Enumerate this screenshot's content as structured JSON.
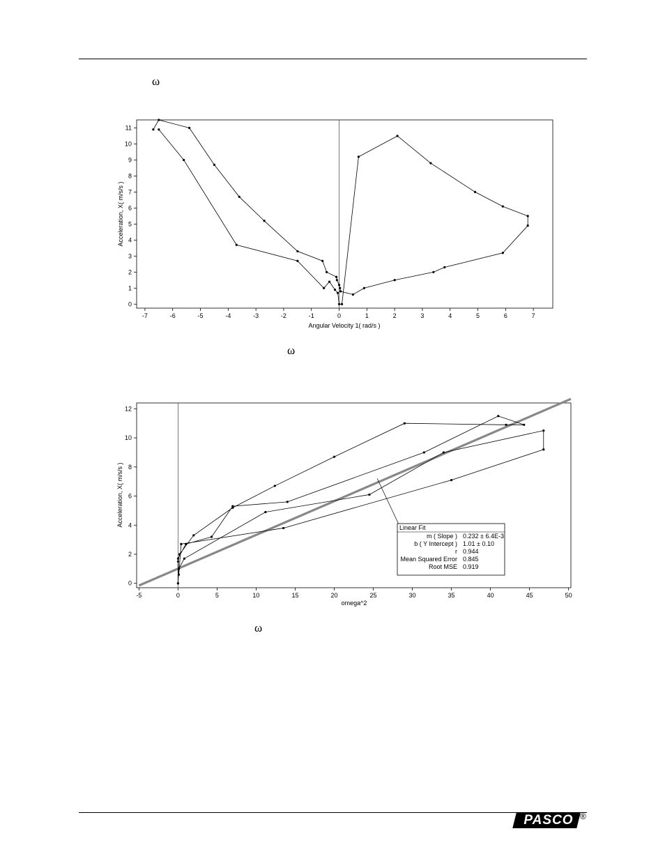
{
  "page": {
    "omega_symbol": "ω",
    "brand": "PASCO",
    "registered_mark": "®"
  },
  "chart_data": [
    {
      "type": "line",
      "title": "",
      "xlabel": "Angular Velocity 1( rad/s )",
      "ylabel": "Acceleration, X( m/s/s )",
      "xlim": [
        -7.3,
        7.7
      ],
      "ylim": [
        -0.25,
        11.5
      ],
      "xticks": [
        -7,
        -6,
        -5,
        -4,
        -3,
        -2,
        -1,
        0,
        1,
        2,
        3,
        4,
        5,
        6,
        7
      ],
      "yticks": [
        0,
        1,
        2,
        3,
        4,
        5,
        6,
        7,
        8,
        9,
        10,
        11
      ],
      "grid": false,
      "legend": "none",
      "zero_line_x": 0,
      "series": [
        {
          "x": [
            -6.7,
            -6.5,
            -5.4,
            -4.5,
            -3.6,
            -2.7,
            -1.5,
            -0.6,
            -0.45,
            -0.1,
            -0.08,
            0.0,
            0.03,
            0.05,
            0.5,
            0.9,
            2.0,
            3.4,
            3.8,
            5.9,
            6.8,
            6.8,
            5.9,
            4.9,
            3.3,
            2.1,
            0.7,
            0.1,
            0.0,
            -0.05,
            -0.15,
            -0.35,
            -0.55,
            -1.5,
            -3.7,
            -5.6,
            -6.5
          ],
          "y": [
            10.9,
            11.5,
            11.0,
            8.7,
            6.7,
            5.2,
            3.3,
            2.7,
            2.0,
            1.7,
            1.5,
            1.2,
            1.0,
            0.8,
            0.6,
            1.0,
            1.5,
            2.0,
            2.3,
            3.2,
            4.9,
            5.5,
            6.1,
            7.0,
            8.8,
            10.5,
            9.2,
            0.0,
            0.0,
            0.7,
            0.9,
            1.4,
            1.0,
            2.7,
            3.7,
            9.0,
            10.9
          ]
        }
      ]
    },
    {
      "type": "scatter",
      "title": "",
      "xlabel": "omega^2",
      "ylabel": "Acceleration, X( m/s/s )",
      "xlim": [
        -5.3,
        50.3
      ],
      "ylim": [
        -0.3,
        12.4
      ],
      "xticks": [
        -5,
        0,
        5,
        10,
        15,
        20,
        25,
        30,
        35,
        40,
        45,
        50
      ],
      "yticks": [
        0,
        2,
        4,
        6,
        8,
        10,
        12
      ],
      "grid": false,
      "legend": "none",
      "zero_line_x": 0,
      "series": [
        {
          "x": [
            0.0,
            0.0,
            0.2,
            2.0,
            7.0,
            12.4,
            20.0,
            29.0,
            42.0,
            44.3,
            41.0,
            31.5,
            14.0,
            7.0,
            4.3,
            1.0,
            0.0,
            0.1,
            0.4,
            13.5,
            35.0,
            46.8,
            46.8,
            34.0,
            24.5,
            11.2,
            0.8,
            0.1,
            0.0
          ],
          "y": [
            0.0,
            1.5,
            2.0,
            3.3,
            5.2,
            6.7,
            8.7,
            11.0,
            10.9,
            10.9,
            11.5,
            9.0,
            5.6,
            5.3,
            3.2,
            2.7,
            1.7,
            0.6,
            2.7,
            3.8,
            7.1,
            9.2,
            10.5,
            9.0,
            6.1,
            4.9,
            1.7,
            1.0,
            0.0
          ]
        }
      ],
      "fit": {
        "slope": 0.232,
        "intercept": 1.01,
        "color": "#888888",
        "title": "Linear Fit",
        "rows": [
          {
            "label": "m ( Slope )",
            "value": "0.232 ± 6.4E-3"
          },
          {
            "label": "b ( Y Intercept )",
            "value": "1.01 ±     0.10"
          },
          {
            "label": "r",
            "value": "0.944"
          },
          {
            "label": "Mean Squared Error",
            "value": "0.845"
          },
          {
            "label": "Root MSE",
            "value": "0.919"
          }
        ]
      }
    }
  ]
}
